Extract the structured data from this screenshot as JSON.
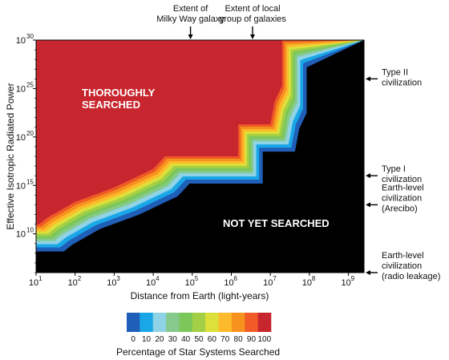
{
  "chart_data": {
    "type": "heatmap",
    "title": "",
    "xlabel": "Distance from Earth (light-years)",
    "ylabel": "Effective Isotropic Radiated Power",
    "x_scale": "log",
    "y_scale": "log",
    "xlim": [
      10,
      2500000000
    ],
    "ylim": [
      1000000.0,
      1e+30
    ],
    "x_ticks": [
      {
        "value": 10,
        "label": "10",
        "exp": "1"
      },
      {
        "value": 100,
        "label": "10",
        "exp": "2"
      },
      {
        "value": 1000,
        "label": "10",
        "exp": "3"
      },
      {
        "value": 10000,
        "label": "10",
        "exp": "4"
      },
      {
        "value": 100000,
        "label": "10",
        "exp": "5"
      },
      {
        "value": 1000000,
        "label": "10",
        "exp": "6"
      },
      {
        "value": 10000000,
        "label": "10",
        "exp": "7"
      },
      {
        "value": 100000000,
        "label": "10",
        "exp": "8"
      },
      {
        "value": 1000000000,
        "label": "10",
        "exp": "9"
      }
    ],
    "y_ticks": [
      {
        "value": 10000000000.0,
        "label": "10",
        "exp": "10"
      },
      {
        "value": 1000000000000000.0,
        "label": "10",
        "exp": "15"
      },
      {
        "value": 1e+20,
        "label": "10",
        "exp": "20"
      },
      {
        "value": 1e+25,
        "label": "10",
        "exp": "25"
      },
      {
        "value": 1e+30,
        "label": "10",
        "exp": "30"
      }
    ],
    "colorbar": {
      "label": "Percentage of Star Systems Searched",
      "ticks": [
        "0",
        "10",
        "20",
        "30",
        "40",
        "50",
        "60",
        "70",
        "80",
        "90",
        "100"
      ],
      "colors": [
        "#1f5fb8",
        "#1aa7e8",
        "#8fd3e6",
        "#86c98d",
        "#7cc75a",
        "#a2cf45",
        "#dde03a",
        "#fdbb2b",
        "#f7921f",
        "#ef5a26",
        "#c8262e"
      ]
    },
    "fully_searched_boundary": [
      [
        12,
        100000000000.0
      ],
      [
        20,
        500000000000.0
      ],
      [
        100,
        20000000000000.0
      ],
      [
        1000,
        600000000000000.0
      ],
      [
        10000,
        5e+16
      ],
      [
        20000,
        1e+18
      ],
      [
        1500000,
        1e+18
      ],
      [
        1500000,
        2e+21
      ],
      [
        10000000,
        2e+21
      ],
      [
        13000000,
        5e+23
      ],
      [
        20000000,
        2e+25
      ],
      [
        20000000,
        1e+30
      ]
    ],
    "top_annotations": [
      {
        "x": 90000,
        "lines": [
          "Extent of",
          "Milky Way galaxy"
        ]
      },
      {
        "x": 3500000,
        "lines": [
          "Extent of local",
          "group of galaxies"
        ]
      }
    ],
    "right_annotations": [
      {
        "y": 1e+26,
        "lines": [
          "Type II",
          "civilization"
        ]
      },
      {
        "y": 1e+16,
        "lines": [
          "Type I",
          "civilization"
        ]
      },
      {
        "y": 10000000000000.0,
        "lines": [
          "Earth-level",
          "civilization",
          "(Arecibo)"
        ]
      },
      {
        "y": 1000000.0,
        "lines": [
          "Earth-level",
          "civilization",
          "(radio leakage)"
        ]
      }
    ],
    "region_labels": [
      {
        "lines": [
          "THOROUGHLY",
          "SEARCHED"
        ],
        "color": "#ffffff"
      },
      {
        "lines": [
          "NOT YET SEARCHED"
        ],
        "color": "#ffffff"
      }
    ]
  }
}
